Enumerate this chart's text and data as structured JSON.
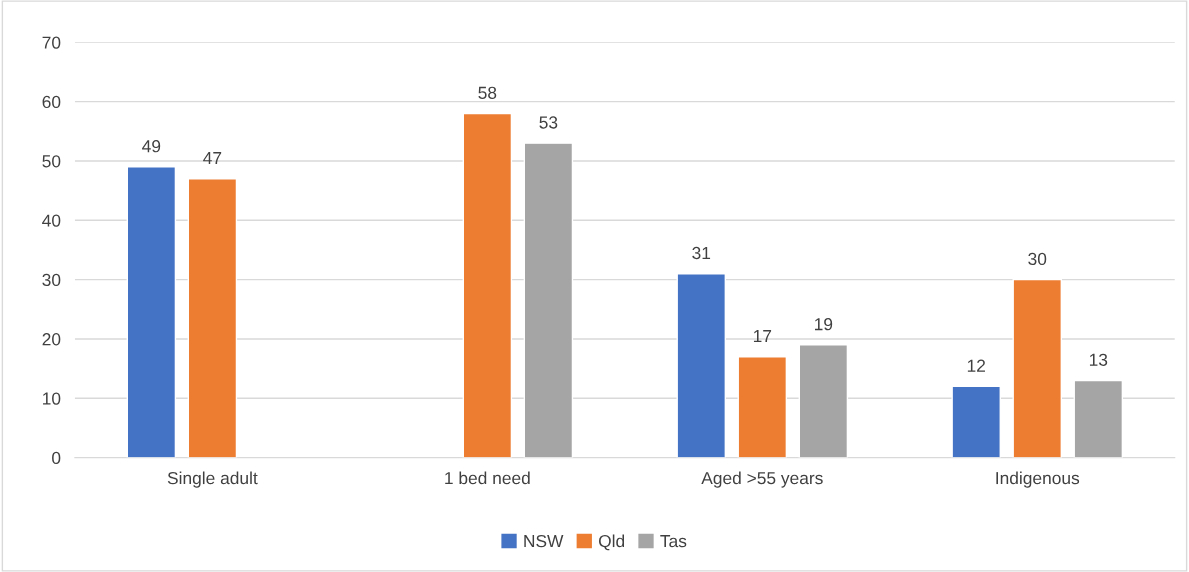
{
  "chart_data": {
    "type": "bar",
    "categories": [
      "Single adult",
      "1 bed need",
      "Aged >55 years",
      "Indigenous"
    ],
    "series": [
      {
        "name": "NSW",
        "color": "#4472c4",
        "values": [
          49,
          null,
          31,
          12
        ]
      },
      {
        "name": "Qld",
        "color": "#ed7d31",
        "values": [
          47,
          58,
          17,
          30
        ]
      },
      {
        "name": "Tas",
        "color": "#a5a5a5",
        "values": [
          null,
          53,
          19,
          13
        ]
      }
    ],
    "ylim": [
      0,
      70
    ],
    "yticks": [
      0,
      10,
      20,
      30,
      40,
      50,
      60,
      70
    ],
    "grid": "y",
    "legend": "bottom",
    "data_labels": true
  }
}
